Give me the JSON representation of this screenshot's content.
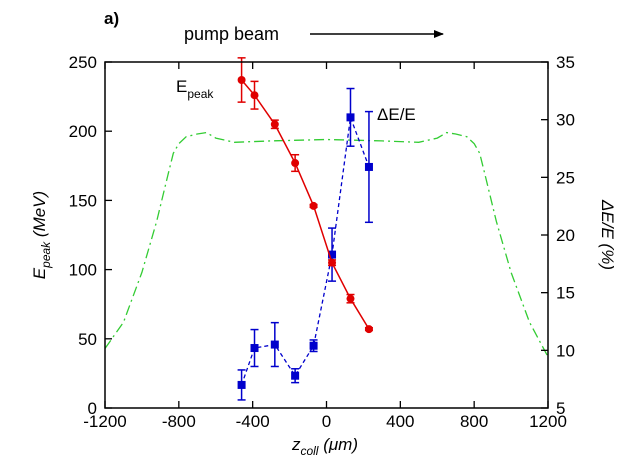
{
  "chart_data": {
    "type": "line",
    "panel_label": "a)",
    "annotation": "pump beam",
    "xlabel_main": "z",
    "xlabel_sub": "coll",
    "xlabel_unit": " (μm)",
    "ylabel_left_main": "E",
    "ylabel_left_sub": "peak",
    "ylabel_left_unit": " (MeV)",
    "ylabel_right": "ΔE/E (%)",
    "xlim": [
      -1200,
      1200
    ],
    "ylim_left": [
      0,
      250
    ],
    "ylim_right": [
      5,
      35
    ],
    "x_ticks": [
      "-1200",
      "-800",
      "-400",
      "0",
      "400",
      "800",
      "1200"
    ],
    "y_left_ticks": [
      "0",
      "50",
      "100",
      "150",
      "200",
      "250"
    ],
    "y_right_ticks": [
      "5",
      "10",
      "15",
      "20",
      "25",
      "30",
      "35"
    ],
    "series": [
      {
        "name": "E",
        "name_sub": "peak",
        "axis": "left",
        "color": "#e00000",
        "marker": "circle",
        "line": "solid",
        "x": [
          -460,
          -390,
          -280,
          -170,
          -70,
          30,
          130,
          230
        ],
        "y": [
          237,
          226,
          205,
          177,
          146,
          105,
          79,
          57
        ],
        "err": [
          16,
          10,
          3,
          6,
          1,
          2,
          3,
          1
        ]
      },
      {
        "name": "ΔE/E",
        "axis": "right",
        "color": "#0000cc",
        "marker": "square",
        "line": "dashed",
        "x": [
          -460,
          -390,
          -280,
          -170,
          -70,
          30,
          130,
          230
        ],
        "y": [
          7.0,
          10.2,
          10.5,
          7.8,
          10.4,
          18.3,
          30.2,
          25.9
        ],
        "err": [
          1.3,
          1.6,
          1.9,
          0.6,
          0.5,
          2.3,
          2.5,
          4.8
        ]
      },
      {
        "axis": "left",
        "color": "#33cc33",
        "line": "dash-dot",
        "x": [
          -1200,
          -1100,
          -1000,
          -920,
          -860,
          -830,
          -800,
          -760,
          -700,
          -650,
          -600,
          -500,
          -300,
          0,
          300,
          500,
          600,
          650,
          700,
          760,
          800,
          830,
          860,
          920,
          1000,
          1100,
          1200
        ],
        "y": [
          43,
          62,
          98,
          135,
          168,
          184,
          191,
          196,
          198,
          199,
          195,
          192,
          193,
          194,
          193,
          192,
          195,
          199,
          198,
          196,
          191,
          184,
          168,
          135,
          98,
          62,
          37
        ]
      }
    ]
  }
}
